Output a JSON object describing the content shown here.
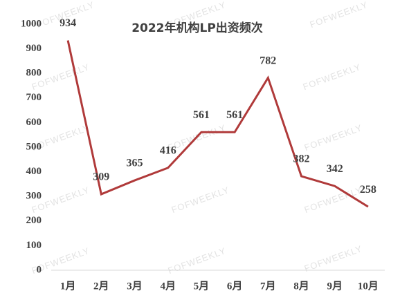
{
  "chart_data": {
    "type": "line",
    "title": "2022年机构LP出资频次",
    "categories": [
      "1月",
      "2月",
      "3月",
      "4月",
      "5月",
      "6月",
      "7月",
      "8月",
      "9月",
      "10月"
    ],
    "values": [
      934,
      309,
      365,
      416,
      561,
      561,
      782,
      382,
      342,
      258
    ],
    "color": "#b03a3a",
    "ylim": [
      0,
      1000
    ],
    "yticks": [
      0,
      100,
      200,
      300,
      400,
      500,
      600,
      700,
      800,
      900,
      1000
    ],
    "grid": false
  },
  "watermark": "FOFWEEKLY"
}
